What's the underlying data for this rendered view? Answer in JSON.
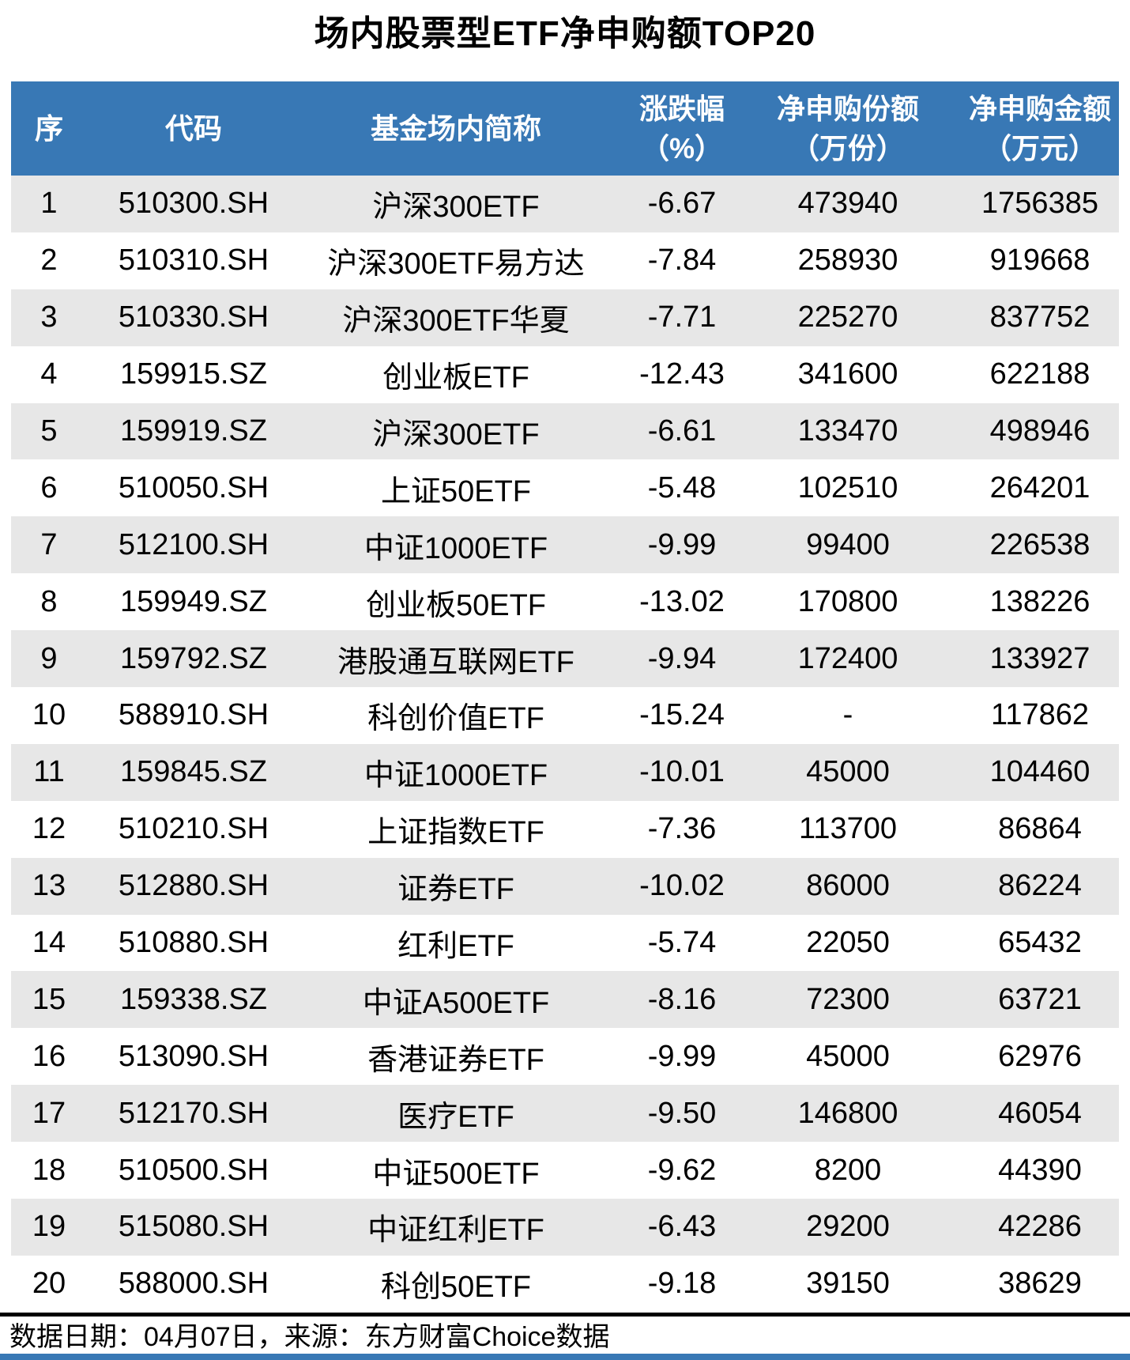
{
  "title": "场内股票型ETF净申购额TOP20",
  "footer": {
    "note": "数据日期：04月07日，来源：东方财富Choice数据"
  },
  "colors": {
    "header_bg": "#3878B5",
    "header_text": "#FFFFFF",
    "row_alt_bg": "#E7E7E7",
    "body_text": "#000000"
  },
  "chart_data": {
    "type": "table",
    "title": "场内股票型ETF净申购额TOP20",
    "columns": [
      {
        "key": "rank",
        "label": "序",
        "unit": ""
      },
      {
        "key": "code",
        "label": "代码",
        "unit": ""
      },
      {
        "key": "name",
        "label": "基金场内简称",
        "unit": ""
      },
      {
        "key": "change_pct",
        "label": "涨跌幅",
        "unit": "（%）"
      },
      {
        "key": "net_subscription_shares",
        "label": "净申购份额",
        "unit": "（万份）"
      },
      {
        "key": "net_subscription_amount",
        "label": "净申购金额",
        "unit": "（万元）"
      }
    ],
    "rows": [
      [
        "1",
        "510300.SH",
        "沪深300ETF",
        "-6.67",
        "473940",
        "1756385"
      ],
      [
        "2",
        "510310.SH",
        "沪深300ETF易方达",
        "-7.84",
        "258930",
        "919668"
      ],
      [
        "3",
        "510330.SH",
        "沪深300ETF华夏",
        "-7.71",
        "225270",
        "837752"
      ],
      [
        "4",
        "159915.SZ",
        "创业板ETF",
        "-12.43",
        "341600",
        "622188"
      ],
      [
        "5",
        "159919.SZ",
        "沪深300ETF",
        "-6.61",
        "133470",
        "498946"
      ],
      [
        "6",
        "510050.SH",
        "上证50ETF",
        "-5.48",
        "102510",
        "264201"
      ],
      [
        "7",
        "512100.SH",
        "中证1000ETF",
        "-9.99",
        "99400",
        "226538"
      ],
      [
        "8",
        "159949.SZ",
        "创业板50ETF",
        "-13.02",
        "170800",
        "138226"
      ],
      [
        "9",
        "159792.SZ",
        "港股通互联网ETF",
        "-9.94",
        "172400",
        "133927"
      ],
      [
        "10",
        "588910.SH",
        "科创价值ETF",
        "-15.24",
        "-",
        "117862"
      ],
      [
        "11",
        "159845.SZ",
        "中证1000ETF",
        "-10.01",
        "45000",
        "104460"
      ],
      [
        "12",
        "510210.SH",
        "上证指数ETF",
        "-7.36",
        "113700",
        "86864"
      ],
      [
        "13",
        "512880.SH",
        "证券ETF",
        "-10.02",
        "86000",
        "86224"
      ],
      [
        "14",
        "510880.SH",
        "红利ETF",
        "-5.74",
        "22050",
        "65432"
      ],
      [
        "15",
        "159338.SZ",
        "中证A500ETF",
        "-8.16",
        "72300",
        "63721"
      ],
      [
        "16",
        "513090.SH",
        "香港证券ETF",
        "-9.99",
        "45000",
        "62976"
      ],
      [
        "17",
        "512170.SH",
        "医疗ETF",
        "-9.50",
        "146800",
        "46054"
      ],
      [
        "18",
        "510500.SH",
        "中证500ETF",
        "-9.62",
        "8200",
        "44390"
      ],
      [
        "19",
        "515080.SH",
        "中证红利ETF",
        "-6.43",
        "29200",
        "42286"
      ],
      [
        "20",
        "588000.SH",
        "科创50ETF",
        "-9.18",
        "39150",
        "38629"
      ]
    ]
  }
}
